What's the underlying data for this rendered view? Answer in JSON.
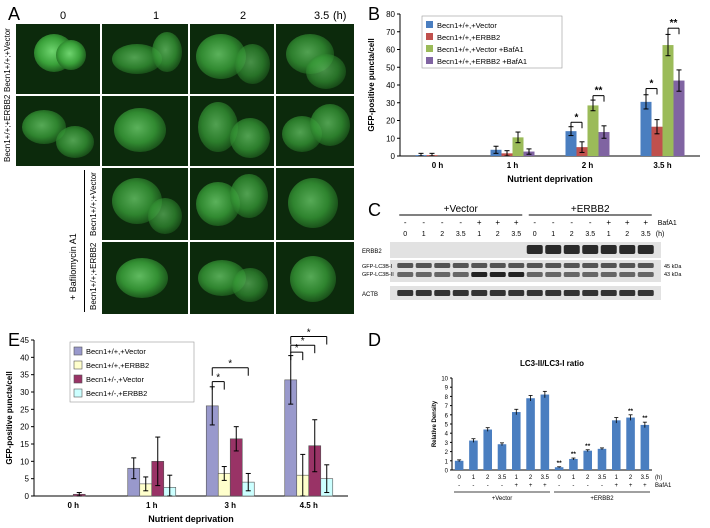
{
  "panels": {
    "A": {
      "letter": "A",
      "timepoints": [
        "0",
        "1",
        "2",
        "3.5"
      ],
      "unit": "(h)",
      "row_labels": [
        "Becn1+/+;+Vector",
        "Becn1+/+;+ERBB2",
        "Becn1+/+;+Vector",
        "Becn1+/+;+ERBB2"
      ],
      "treatment_label": "+ Bafilomycin A1"
    },
    "B": {
      "letter": "B",
      "chart_data": {
        "type": "bar",
        "categories": [
          "0 h",
          "1 h",
          "2 h",
          "3.5 h"
        ],
        "xlabel": "Nutrient deprivation",
        "ylabel": "GFP-positive puncta/cell",
        "ylim": [
          0,
          80
        ],
        "yticks": [
          0,
          10,
          20,
          30,
          40,
          50,
          60,
          70,
          80
        ],
        "series": [
          {
            "name": "Becn1+/+,+Vector",
            "color": "#4a7ec0",
            "values": [
              0.5,
              3.5,
              14,
              30.5
            ],
            "errors": [
              1,
              2,
              2.5,
              4
            ]
          },
          {
            "name": "Becn1+/+,+ERBB2",
            "color": "#c0504d",
            "values": [
              0.5,
              1.5,
              5,
              16.5
            ],
            "errors": [
              1,
              1.5,
              3,
              4
            ]
          },
          {
            "name": "Becn1+/+,+Vector +BafA1",
            "color": "#9bbb59",
            "values": [
              null,
              10.5,
              28.5,
              62.5
            ],
            "errors": [
              null,
              3,
              3,
              6
            ]
          },
          {
            "name": "Becn1+/+,+ERBB2 +BafA1",
            "color": "#8064a2",
            "values": [
              null,
              2.5,
              13.5,
              42.5
            ],
            "errors": [
              null,
              1.5,
              3.5,
              6
            ]
          }
        ],
        "significance": [
          {
            "category": "2 h",
            "text": "*"
          },
          {
            "category": "2 h",
            "text": "**"
          },
          {
            "category": "3.5 h",
            "text": "*"
          },
          {
            "category": "3.5 h",
            "text": "**"
          }
        ]
      }
    },
    "C": {
      "letter": "C",
      "groups": [
        "+Vector",
        "+ERBB2"
      ],
      "bafa1_label": "BafA1",
      "bafa1_signs": [
        "-",
        "-",
        "-",
        "-",
        "+",
        "+",
        "+",
        "-",
        "-",
        "-",
        "-",
        "+",
        "+",
        "+"
      ],
      "lane_times": [
        "0",
        "1",
        "2",
        "3.5",
        "1",
        "2",
        "3.5",
        "0",
        "1",
        "2",
        "3.5",
        "1",
        "2",
        "3.5"
      ],
      "unit": "(h)",
      "bands": [
        "ERBB2",
        "GFP-LC3B-I",
        "GFP-LC3B-II",
        "ACTB"
      ],
      "sizes": [
        "45 kDa",
        "43 kDa"
      ]
    },
    "D": {
      "letter": "D",
      "chart_data": {
        "type": "bar",
        "title": "LC3-II/LC3-I ratio",
        "ylabel": "Relative Density",
        "ylim": [
          0,
          10
        ],
        "yticks": [
          0,
          1,
          2,
          3,
          4,
          5,
          6,
          7,
          8,
          9,
          10
        ],
        "categories": [
          "0",
          "1",
          "2",
          "3.5",
          "1",
          "2",
          "3.5",
          "0",
          "1",
          "2",
          "3.5",
          "1",
          "2",
          "3.5"
        ],
        "unit": "(h)",
        "bafa1_label": "BafA1",
        "bafa1_signs": [
          "-",
          "-",
          "-",
          "-",
          "+",
          "+",
          "+",
          "-",
          "-",
          "-",
          "-",
          "+",
          "+",
          "+"
        ],
        "groups": [
          "+Vector",
          "+ERBB2"
        ],
        "color": "#4a7ec0",
        "values": [
          1.0,
          3.2,
          4.4,
          2.8,
          6.3,
          7.8,
          8.2,
          0.3,
          1.2,
          2.1,
          2.3,
          5.4,
          5.7,
          4.9
        ],
        "errors": [
          0.1,
          0.2,
          0.2,
          0.15,
          0.3,
          0.3,
          0.35,
          0.05,
          0.1,
          0.1,
          0.1,
          0.3,
          0.3,
          0.3
        ],
        "significance": [
          "",
          "",
          "",
          "",
          "",
          "",
          "",
          "**",
          "**",
          "**",
          "",
          "",
          "**",
          "**"
        ]
      }
    },
    "E": {
      "letter": "E",
      "chart_data": {
        "type": "bar",
        "categories": [
          "0 h",
          "1 h",
          "3 h",
          "4.5 h"
        ],
        "xlabel": "Nutrient deprivation",
        "ylabel": "GFP-positive puncta/cell",
        "ylim": [
          0,
          45
        ],
        "yticks": [
          0,
          5,
          10,
          15,
          20,
          25,
          30,
          35,
          40,
          45
        ],
        "series": [
          {
            "name": "Becn1+/+,+Vector",
            "color": "#9999cc",
            "values": [
              0,
              8,
              26,
              33.5
            ],
            "errors": [
              0,
              3,
              5.5,
              7
            ]
          },
          {
            "name": "Becn1+/+,+ERBB2",
            "color": "#ffffcc",
            "values": [
              0,
              3.5,
              6.5,
              6
            ],
            "errors": [
              0,
              2,
              2,
              6
            ]
          },
          {
            "name": "Becn1+/-,+Vector",
            "color": "#993366",
            "values": [
              0.5,
              10,
              16.5,
              14.5
            ],
            "errors": [
              0.5,
              7,
              3.5,
              7.5
            ]
          },
          {
            "name": "Becn1+/-,+ERBB2",
            "color": "#ccffff",
            "values": [
              0,
              2.5,
              4,
              5
            ],
            "errors": [
              0,
              3.5,
              2.5,
              4
            ]
          }
        ],
        "significance": [
          {
            "category": "3 h",
            "text": "*"
          },
          {
            "category": "3 h",
            "text": "*"
          },
          {
            "category": "4.5 h",
            "text": "*"
          },
          {
            "category": "4.5 h",
            "text": "*"
          },
          {
            "category": "4.5 h",
            "text": "*"
          }
        ]
      }
    }
  }
}
